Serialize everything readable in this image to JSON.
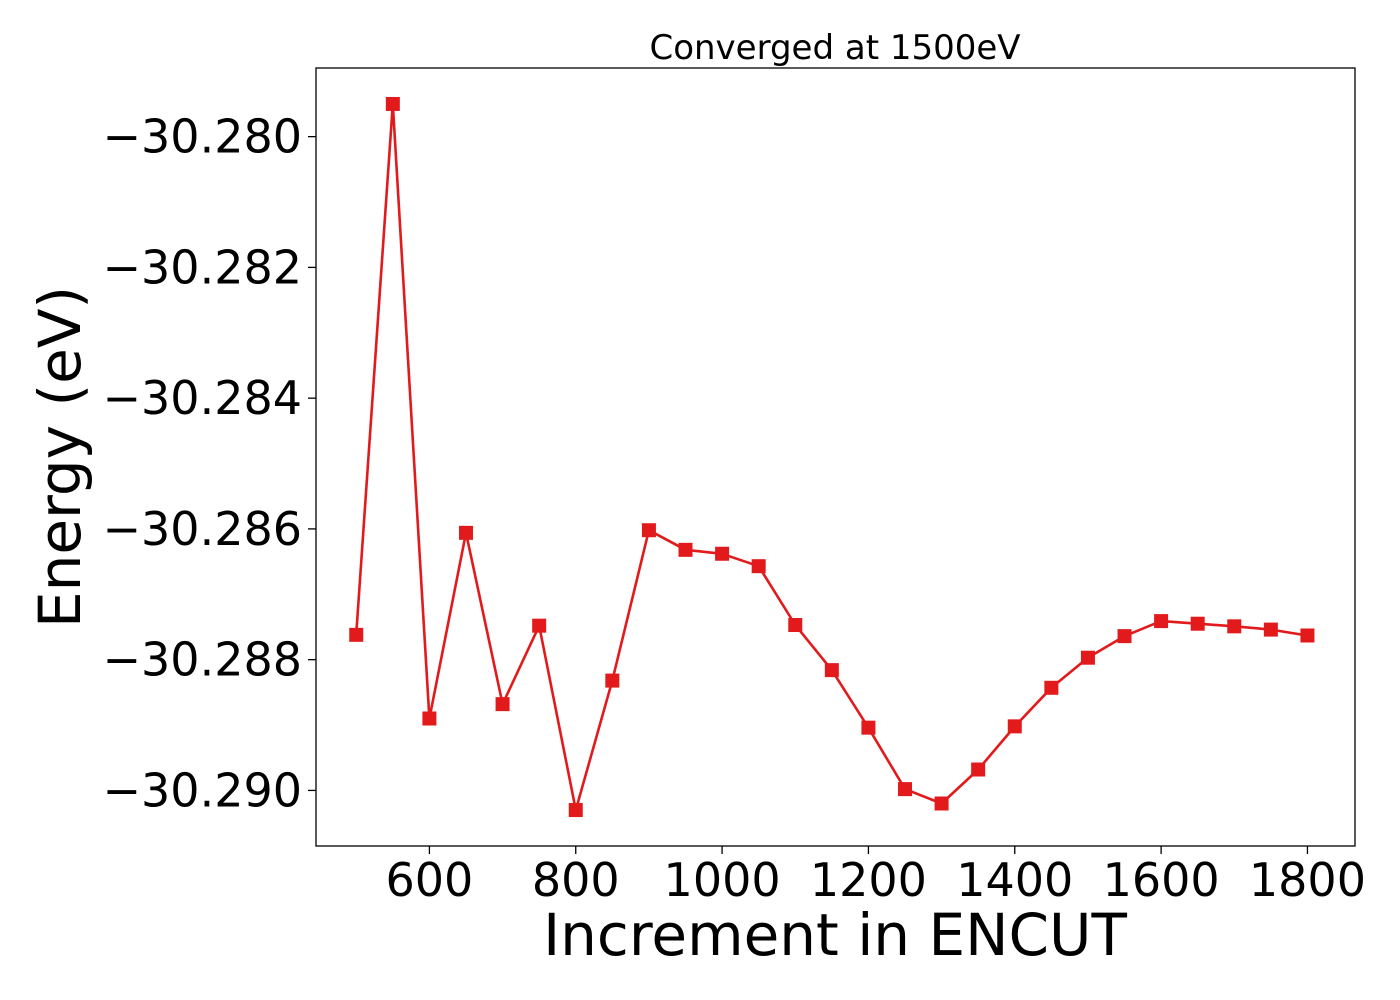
{
  "chart_data": {
    "type": "line",
    "title": "Converged at 1500eV",
    "xlabel": "Increment in ENCUT",
    "ylabel": "Energy (eV)",
    "xlim": [
      445,
      1865
    ],
    "ylim": [
      -30.29085,
      -30.27895
    ],
    "xticks": [
      600,
      800,
      1000,
      1200,
      1400,
      1600,
      1800
    ],
    "xtick_labels": [
      "600",
      "800",
      "1000",
      "1200",
      "1400",
      "1600",
      "1800"
    ],
    "yticks": [
      -30.28,
      -30.282,
      -30.284,
      -30.286,
      -30.288,
      -30.29
    ],
    "ytick_labels": [
      "−30.280",
      "−30.282",
      "−30.284",
      "−30.286",
      "−30.288",
      "−30.290"
    ],
    "grid": false,
    "legend": "none",
    "series": [
      {
        "color": "#e31a1c",
        "marker": "square",
        "x": [
          500,
          550,
          600,
          650,
          700,
          750,
          800,
          850,
          900,
          950,
          1000,
          1050,
          1100,
          1150,
          1200,
          1250,
          1300,
          1350,
          1400,
          1450,
          1500,
          1550,
          1600,
          1650,
          1700,
          1750,
          1800
        ],
        "y": [
          -30.28762,
          -30.2795,
          -30.2889,
          -30.28606,
          -30.28868,
          -30.28748,
          -30.2903,
          -30.28832,
          -30.28602,
          -30.28632,
          -30.28638,
          -30.28657,
          -30.28747,
          -30.28816,
          -30.28904,
          -30.28998,
          -30.2902,
          -30.28968,
          -30.28902,
          -30.28843,
          -30.28797,
          -30.28764,
          -30.28741,
          -30.28745,
          -30.28749,
          -30.28754,
          -30.28763
        ]
      }
    ]
  }
}
